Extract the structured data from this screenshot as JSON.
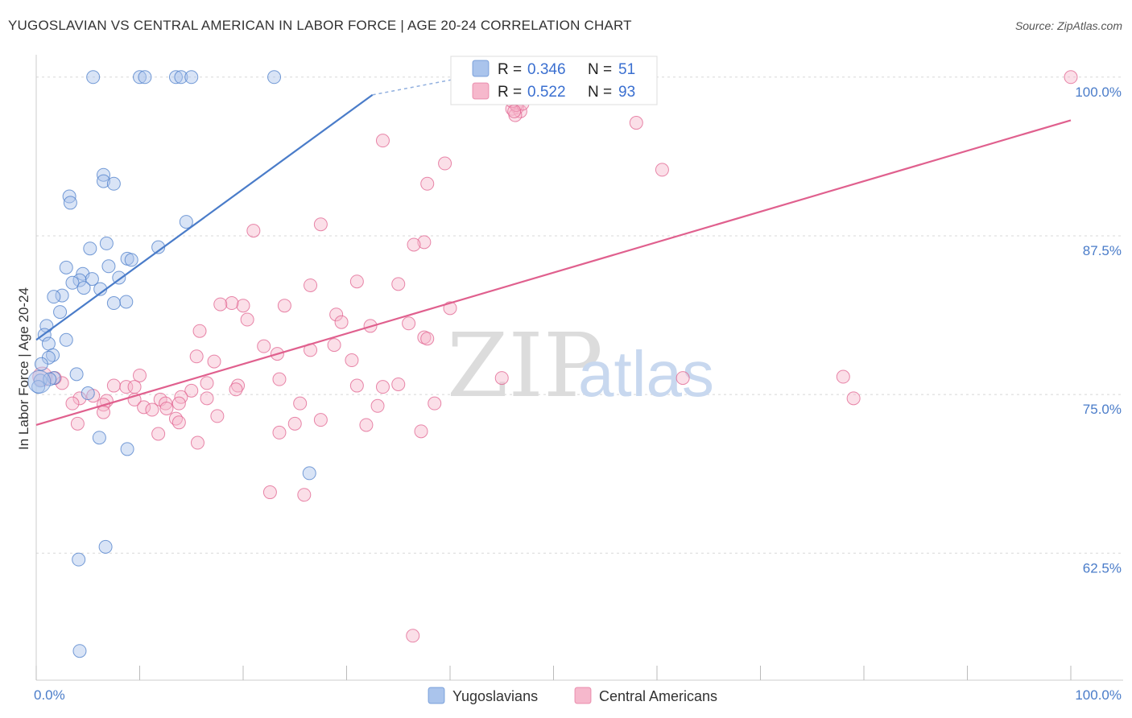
{
  "title": "YUGOSLAVIAN VS CENTRAL AMERICAN IN LABOR FORCE | AGE 20-24 CORRELATION CHART",
  "source": "Source: ZipAtlas.com",
  "watermark": {
    "zip": "ZIP",
    "atlas": "atlas"
  },
  "colors": {
    "blue": "#4a7cc9",
    "blue_fill": "#aac4ec",
    "pink": "#e0608e",
    "pink_fill": "#f6b8cc",
    "grid": "#d8d8d8"
  },
  "legend": {
    "rows": [
      {
        "r_label": "R =",
        "r_value": "0.346",
        "n_label": "N =",
        "n_value": "51"
      },
      {
        "r_label": "R =",
        "r_value": "0.522",
        "n_label": "N =",
        "n_value": "93"
      }
    ]
  },
  "bottom_legend": {
    "items": [
      "Yugoslavians",
      "Central Americans"
    ]
  },
  "chart_data": {
    "type": "scatter",
    "ylabel": "In Labor Force | Age 20-24",
    "xlabel": "",
    "xlim": [
      0,
      100
    ],
    "ylim": [
      52.5,
      101
    ],
    "x_tick_labels": [
      "0.0%",
      "100.0%"
    ],
    "y_ticks": [
      62.5,
      75.0,
      87.5,
      100.0
    ],
    "y_tick_labels": [
      "62.5%",
      "75.0%",
      "87.5%",
      "100.0%"
    ],
    "grid": true,
    "series": [
      {
        "name": "Yugoslavians",
        "color": "#4a7cc9",
        "trend": {
          "x": [
            0,
            32.5
          ],
          "y": [
            79.3,
            98.6
          ],
          "dashed_to": [
            41.5,
            100.0
          ]
        },
        "points": [
          [
            5.5,
            100
          ],
          [
            10,
            100
          ],
          [
            10.5,
            100
          ],
          [
            13.5,
            100
          ],
          [
            14,
            100
          ],
          [
            15,
            100
          ],
          [
            23,
            100
          ],
          [
            6.5,
            92.3
          ],
          [
            6.5,
            91.8
          ],
          [
            7.5,
            91.6
          ],
          [
            3.2,
            90.6
          ],
          [
            3.3,
            90.1
          ],
          [
            14.5,
            88.6
          ],
          [
            6.8,
            86.9
          ],
          [
            5.2,
            86.5
          ],
          [
            11.8,
            86.6
          ],
          [
            8.8,
            85.7
          ],
          [
            9.2,
            85.6
          ],
          [
            2.9,
            85.0
          ],
          [
            7.0,
            85.1
          ],
          [
            4.5,
            84.5
          ],
          [
            5.4,
            84.1
          ],
          [
            4.2,
            84.0
          ],
          [
            3.5,
            83.8
          ],
          [
            6.2,
            83.3
          ],
          [
            4.6,
            83.4
          ],
          [
            8.0,
            84.2
          ],
          [
            2.5,
            82.8
          ],
          [
            1.7,
            82.7
          ],
          [
            8.7,
            82.3
          ],
          [
            7.5,
            82.2
          ],
          [
            2.3,
            81.5
          ],
          [
            1.0,
            80.4
          ],
          [
            0.8,
            79.7
          ],
          [
            2.9,
            79.3
          ],
          [
            1.2,
            79.0
          ],
          [
            1.6,
            78.1
          ],
          [
            1.2,
            77.9
          ],
          [
            0.5,
            77.4
          ],
          [
            3.9,
            76.6
          ],
          [
            1.7,
            76.3
          ],
          [
            0.4,
            76.1
          ],
          [
            0.2,
            75.6
          ],
          [
            5.0,
            75.1
          ],
          [
            6.1,
            71.6
          ],
          [
            8.8,
            70.7
          ],
          [
            26.4,
            68.8
          ],
          [
            6.7,
            63.0
          ],
          [
            4.1,
            62.0
          ],
          [
            4.2,
            54.8
          ],
          [
            1.3,
            76.2
          ]
        ]
      },
      {
        "name": "Central Americans",
        "color": "#e0608e",
        "trend": {
          "x": [
            0,
            100
          ],
          "y": [
            72.6,
            96.6
          ]
        },
        "points": [
          [
            55,
            100
          ],
          [
            100,
            100
          ],
          [
            46.5,
            97.6
          ],
          [
            46,
            97.5
          ],
          [
            46.8,
            97.3
          ],
          [
            46.3,
            97.0
          ],
          [
            46.8,
            98.5
          ],
          [
            46.4,
            97.8
          ],
          [
            47.0,
            97.9
          ],
          [
            46.0,
            98.1
          ],
          [
            46.2,
            97.3
          ],
          [
            58,
            96.4
          ],
          [
            33.5,
            95.0
          ],
          [
            39.5,
            93.2
          ],
          [
            60.5,
            92.7
          ],
          [
            37.8,
            91.6
          ],
          [
            27.5,
            88.4
          ],
          [
            21,
            87.9
          ],
          [
            37.5,
            87.0
          ],
          [
            36.5,
            86.8
          ],
          [
            31,
            83.9
          ],
          [
            26.5,
            83.6
          ],
          [
            35,
            83.7
          ],
          [
            20,
            82.0
          ],
          [
            24,
            82.0
          ],
          [
            18.9,
            82.2
          ],
          [
            17.8,
            82.1
          ],
          [
            29,
            81.3
          ],
          [
            40,
            81.8
          ],
          [
            20.4,
            80.9
          ],
          [
            29.5,
            80.7
          ],
          [
            32.3,
            80.4
          ],
          [
            36,
            80.6
          ],
          [
            37.5,
            79.5
          ],
          [
            15.8,
            80.0
          ],
          [
            22,
            78.8
          ],
          [
            26.5,
            78.5
          ],
          [
            15.5,
            78.0
          ],
          [
            23.3,
            78.2
          ],
          [
            28.8,
            78.9
          ],
          [
            17.2,
            77.6
          ],
          [
            30.5,
            77.7
          ],
          [
            10,
            76.5
          ],
          [
            23.5,
            76.2
          ],
          [
            33.5,
            75.6
          ],
          [
            35,
            75.8
          ],
          [
            31,
            75.7
          ],
          [
            19.5,
            75.7
          ],
          [
            16.5,
            75.9
          ],
          [
            7.5,
            75.7
          ],
          [
            8.7,
            75.6
          ],
          [
            19.3,
            75.4
          ],
          [
            15,
            75.3
          ],
          [
            5.5,
            74.9
          ],
          [
            4.2,
            74.7
          ],
          [
            6.8,
            74.5
          ],
          [
            9.5,
            74.6
          ],
          [
            12,
            74.6
          ],
          [
            14,
            74.8
          ],
          [
            16.5,
            74.7
          ],
          [
            3.5,
            74.3
          ],
          [
            6.5,
            74.2
          ],
          [
            12.5,
            74.3
          ],
          [
            13.8,
            74.3
          ],
          [
            10.4,
            74.0
          ],
          [
            11.2,
            73.8
          ],
          [
            12.6,
            73.9
          ],
          [
            25.5,
            74.3
          ],
          [
            33,
            74.1
          ],
          [
            38.5,
            74.3
          ],
          [
            17.5,
            73.3
          ],
          [
            27.5,
            73.0
          ],
          [
            31.9,
            72.6
          ],
          [
            4.0,
            72.7
          ],
          [
            13.5,
            73.1
          ],
          [
            13.8,
            72.8
          ],
          [
            25,
            72.7
          ],
          [
            11.8,
            71.9
          ],
          [
            23.5,
            72.0
          ],
          [
            37.2,
            72.1
          ],
          [
            15.6,
            71.2
          ],
          [
            6.5,
            73.6
          ],
          [
            25.9,
            67.1
          ],
          [
            22.6,
            67.3
          ],
          [
            62.5,
            76.3
          ],
          [
            78,
            76.4
          ],
          [
            79,
            74.7
          ],
          [
            37.8,
            79.4
          ],
          [
            45,
            76.3
          ],
          [
            9.5,
            75.6
          ],
          [
            2.5,
            75.9
          ],
          [
            1.8,
            76.3
          ],
          [
            36.4,
            56.0
          ]
        ]
      }
    ]
  }
}
